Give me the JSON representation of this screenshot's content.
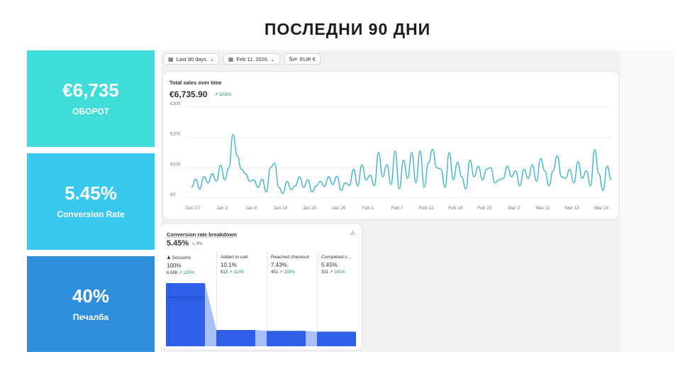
{
  "heading": "ПОСЛЕДНИ 90 ДНИ",
  "kpis": [
    {
      "value": "€6,735",
      "label": "ОБОРОТ",
      "color": "#40dcd9"
    },
    {
      "value": "5.45%",
      "label": "Conversion Rate",
      "color": "#3ac9ee"
    },
    {
      "value": "40%",
      "label": "Печалба",
      "color": "#2d8fdc"
    }
  ],
  "filters": {
    "range": {
      "icon": "calendar-icon",
      "label": "Last 90 days"
    },
    "compare": {
      "icon": "calendar-icon",
      "label": "Feb 11, 2026"
    },
    "currency": {
      "icon": "currency-icon",
      "label": "EUR €"
    }
  },
  "sales": {
    "title": "Total sales over time",
    "total": "€6,735.90",
    "delta": "↗ 101%"
  },
  "conversion": {
    "title": "Conversion rate breakdown",
    "rate": "5.45%",
    "delta": "↘ 9%",
    "stages": [
      {
        "name": "Sessions",
        "percent": "100%",
        "count": "6,068",
        "delta": "↗ 120%",
        "value": 100
      },
      {
        "name": "Added to cart",
        "percent": "10.1%",
        "count": "613",
        "delta": "↗ 110%",
        "value": 10.1
      },
      {
        "name": "Reached checkout",
        "percent": "7.43%",
        "count": "451",
        "delta": "↗ 103%",
        "value": 7.43
      },
      {
        "name": "Completed c...",
        "percent": "5.45%",
        "count": "331",
        "delta": "↗ 101%",
        "value": 5.45
      }
    ]
  },
  "chart_data": {
    "type": "line",
    "title": "Total sales over time",
    "ylim": [
      0,
      300
    ],
    "yticks": [
      {
        "v": 0,
        "label": "€0"
      },
      {
        "v": 100,
        "label": "€100"
      },
      {
        "v": 200,
        "label": "€200"
      },
      {
        "v": 300,
        "label": "€300"
      }
    ],
    "xticks": [
      "Dec 27",
      "Jan 2",
      "Jan 8",
      "Jan 14",
      "Jan 20",
      "Jan 26",
      "Feb 1",
      "Feb 7",
      "Feb 13",
      "Feb 19",
      "Feb 25",
      "Mar 3",
      "Mar 11",
      "Mar 18",
      "Mar 24"
    ],
    "grid": true,
    "color": "#3bb4d0",
    "values": [
      35,
      62,
      30,
      70,
      50,
      80,
      55,
      108,
      60,
      100,
      210,
      140,
      95,
      80,
      55,
      60,
      35,
      62,
      20,
      100,
      115,
      35,
      15,
      55,
      28,
      40,
      70,
      35,
      60,
      20,
      40,
      55,
      38,
      70,
      45,
      72,
      25,
      50,
      42,
      95,
      40,
      110,
      60,
      75,
      40,
      150,
      70,
      110,
      45,
      155,
      30,
      125,
      65,
      150,
      50,
      155,
      35,
      115,
      160,
      100,
      95,
      35,
      150,
      60,
      118,
      70,
      30,
      125,
      70,
      105,
      60,
      95,
      100,
      50,
      60,
      65,
      105,
      70,
      90,
      40,
      95,
      65,
      110,
      55,
      130,
      90,
      40,
      90,
      140,
      70,
      65,
      95,
      50,
      120,
      65,
      90,
      40,
      160,
      80,
      25,
      105,
      60
    ]
  }
}
